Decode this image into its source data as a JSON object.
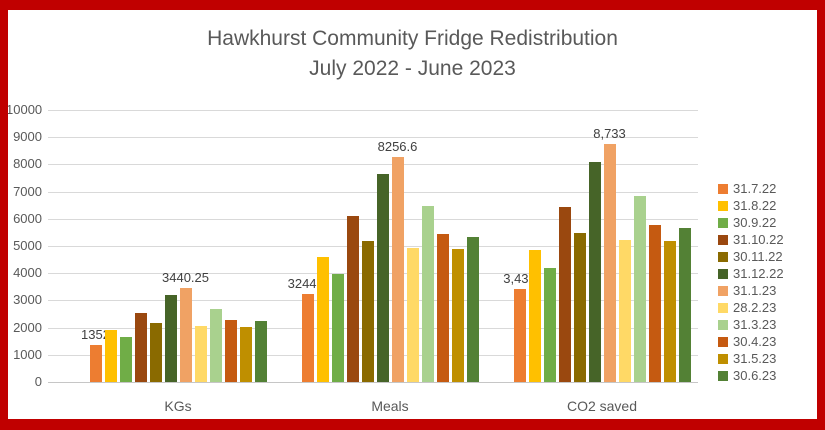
{
  "frame": {
    "border_color": "#C00000",
    "background_color": "#FFFFFF"
  },
  "colors": {
    "title_text": "#595959",
    "axis_text": "#595959",
    "gridline": "#D9D9D9",
    "data_label_text": "#404040"
  },
  "chart_data": {
    "type": "bar",
    "title": "Hawkhurst Community Fridge Redistribution",
    "subtitle": "July 2022 - June 2023",
    "categories": [
      "KGs",
      "Meals",
      "CO2 saved"
    ],
    "series": [
      {
        "name": "31.7.22",
        "color": "#ED7D31",
        "values": [
          1352,
          3244.8,
          3432
        ]
      },
      {
        "name": "31.8.22",
        "color": "#FFC000",
        "values": [
          1915,
          4596,
          4861
        ]
      },
      {
        "name": "30.9.22",
        "color": "#70AD47",
        "values": [
          1655,
          3972,
          4201
        ]
      },
      {
        "name": "31.10.22",
        "color": "#9A480F",
        "values": [
          2540,
          6096,
          6448
        ]
      },
      {
        "name": "30.11.22",
        "color": "#8A6A00",
        "values": [
          2160,
          5184,
          5483
        ]
      },
      {
        "name": "31.12.22",
        "color": "#466428",
        "values": [
          3185,
          7644,
          8085
        ]
      },
      {
        "name": "31.1.23",
        "color": "#F0A264",
        "values": [
          3440.25,
          8256.6,
          8733
        ]
      },
      {
        "name": "28.2.23",
        "color": "#FFD966",
        "values": [
          2050,
          4920,
          5204
        ]
      },
      {
        "name": "31.3.23",
        "color": "#A9D18E",
        "values": [
          2690,
          6456,
          6829
        ]
      },
      {
        "name": "30.4.23",
        "color": "#C55A11",
        "values": [
          2270,
          5448,
          5762
        ]
      },
      {
        "name": "31.5.23",
        "color": "#BF8F00",
        "values": [
          2040,
          4896,
          5179
        ]
      },
      {
        "name": "30.6.23",
        "color": "#538135",
        "values": [
          2225,
          5340,
          5648
        ]
      }
    ],
    "ylim": [
      0,
      10000
    ],
    "yticks": [
      0,
      1000,
      2000,
      3000,
      4000,
      5000,
      6000,
      7000,
      8000,
      9000,
      10000
    ],
    "grid": true,
    "legend_position": "right",
    "data_labels": [
      {
        "series": "31.7.22",
        "category": "KGs",
        "text": "1352"
      },
      {
        "series": "31.1.23",
        "category": "KGs",
        "text": "3440.25"
      },
      {
        "series": "31.7.22",
        "category": "Meals",
        "text": "3244.8"
      },
      {
        "series": "31.1.23",
        "category": "Meals",
        "text": "8256.6"
      },
      {
        "series": "31.7.22",
        "category": "CO2 saved",
        "text": "3,432"
      },
      {
        "series": "31.1.23",
        "category": "CO2 saved",
        "text": "8,733"
      }
    ]
  }
}
